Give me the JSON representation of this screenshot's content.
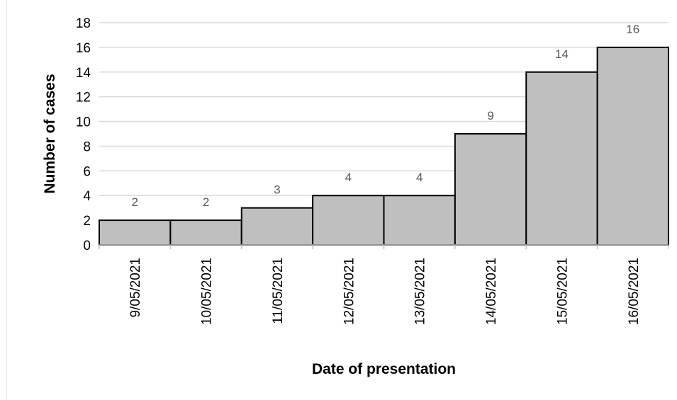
{
  "chart_data": {
    "type": "bar",
    "title": "",
    "xlabel": "Date of presentation",
    "ylabel": "Number of cases",
    "categories": [
      "9/05/2021",
      "10/05/2021",
      "11/05/2021",
      "12/05/2021",
      "13/05/2021",
      "14/05/2021",
      "15/05/2021",
      "16/05/2021"
    ],
    "values": [
      2,
      2,
      3,
      4,
      4,
      9,
      14,
      16
    ],
    "ylim": [
      0,
      18
    ],
    "yticks": [
      0,
      2,
      4,
      6,
      8,
      10,
      12,
      14,
      16,
      18
    ],
    "grid": true,
    "legend": "none",
    "colors": {
      "bar_fill": "#bfbfbf",
      "bar_stroke": "#000000",
      "grid": "#d9d9d9",
      "data_label": "#595959"
    }
  }
}
